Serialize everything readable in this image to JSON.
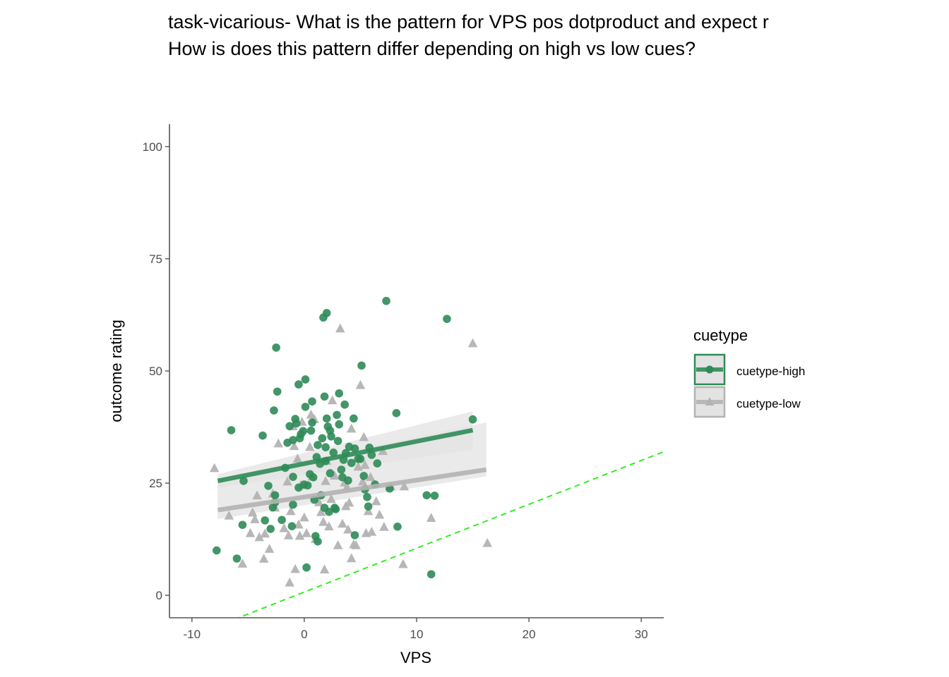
{
  "title_lines": [
    "task-vicarious- What is the pattern for VPS pos dotproduct and expect r",
    "How is does this pattern differ depending on high vs low cues?"
  ],
  "colors": {
    "high": "#2e8b57",
    "low": "#b3b3b3",
    "band": "#e3e3e3",
    "reference": "#33ee22",
    "axis": "#555555"
  },
  "chart_data": {
    "type": "scatter",
    "title": "task-vicarious- What is the pattern for VPS pos dotproduct and expect r\nHow is does this pattern differ depending on high vs low cues?",
    "xlabel": "VPS",
    "ylabel": "outcome rating",
    "xlim": [
      -12,
      32
    ],
    "ylim": [
      -5,
      105
    ],
    "xticks": [
      -10,
      0,
      10,
      20,
      30
    ],
    "yticks": [
      0,
      25,
      50,
      75,
      100
    ],
    "grid": false,
    "legend": {
      "title": "cuetype",
      "placement": "right"
    },
    "reference_line": {
      "style": "dashed",
      "color": "#33ee22",
      "x": [
        -12,
        32
      ],
      "y": [
        -11,
        32
      ]
    },
    "series": [
      {
        "name": "cuetype-high",
        "marker": "circle",
        "color": "#2e8b57",
        "fit": {
          "x": [
            -7.7,
            15.0
          ],
          "y": [
            25.5,
            36.8
          ]
        },
        "band": {
          "x": [
            -7.7,
            15.0
          ],
          "lower": [
            24.0,
            32.5
          ],
          "upper": [
            27.0,
            41.0
          ]
        },
        "points": [
          [
            -7.8,
            10
          ],
          [
            -6.5,
            36.8
          ],
          [
            -6,
            8.2
          ],
          [
            -5.5,
            15.7
          ],
          [
            -5.4,
            25.5
          ],
          [
            -3.7,
            35.6
          ],
          [
            -3.5,
            16.7
          ],
          [
            -3.2,
            24.4
          ],
          [
            -3,
            14.8
          ],
          [
            -2.8,
            19.6
          ],
          [
            -2.6,
            20.7
          ],
          [
            -2.7,
            41.2
          ],
          [
            -2.6,
            22.3
          ],
          [
            -2.5,
            55.2
          ],
          [
            -2.4,
            45.4
          ],
          [
            -2,
            16.8
          ],
          [
            -1.7,
            28.4
          ],
          [
            -1.5,
            34
          ],
          [
            -1.3,
            37.7
          ],
          [
            -1.1,
            15.4
          ],
          [
            -1,
            20.2
          ],
          [
            -1,
            26.4
          ],
          [
            -1,
            34.6
          ],
          [
            -0.8,
            39.3
          ],
          [
            -0.7,
            38.3
          ],
          [
            -0.5,
            24
          ],
          [
            -0.5,
            47
          ],
          [
            -0.4,
            35
          ],
          [
            -0.3,
            35.9
          ],
          [
            -0.1,
            36.6
          ],
          [
            0,
            24.7
          ],
          [
            0.1,
            42
          ],
          [
            0.1,
            48.1
          ],
          [
            0.2,
            6.2
          ],
          [
            0.3,
            24.5
          ],
          [
            0.5,
            27
          ],
          [
            0.6,
            36.7
          ],
          [
            0.7,
            38.5
          ],
          [
            0.7,
            43.2
          ],
          [
            0.8,
            26.3
          ],
          [
            0.9,
            21.3
          ],
          [
            1,
            13.2
          ],
          [
            1.2,
            12
          ],
          [
            1.1,
            30.8
          ],
          [
            1.2,
            33.5
          ],
          [
            1.4,
            29.3
          ],
          [
            1.5,
            22.3
          ],
          [
            1.6,
            35
          ],
          [
            1.7,
            61.9
          ],
          [
            1.8,
            44.3
          ],
          [
            1.8,
            19.5
          ],
          [
            1.9,
            29.9
          ],
          [
            1.9,
            33
          ],
          [
            2,
            39.4
          ],
          [
            2,
            62.9
          ],
          [
            2.1,
            37.6
          ],
          [
            2.2,
            18.6
          ],
          [
            2.3,
            36.7
          ],
          [
            2.3,
            27.2
          ],
          [
            2.4,
            35.4
          ],
          [
            2.6,
            31.8
          ],
          [
            2.7,
            19.5
          ],
          [
            2.8,
            19.2
          ],
          [
            2.9,
            40.2
          ],
          [
            3,
            34.4
          ],
          [
            3.1,
            38.1
          ],
          [
            3.1,
            45
          ],
          [
            3.3,
            28
          ],
          [
            3.4,
            26.3
          ],
          [
            3.5,
            30.2
          ],
          [
            3.6,
            42.5
          ],
          [
            3.7,
            31.7
          ],
          [
            3.9,
            25.6
          ],
          [
            4,
            33.1
          ],
          [
            4.2,
            29.5
          ],
          [
            4.4,
            39.4
          ],
          [
            4.5,
            32.7
          ],
          [
            4.5,
            13.4
          ],
          [
            4.8,
            30.4
          ],
          [
            5,
            30.4
          ],
          [
            5.1,
            51.2
          ],
          [
            5.3,
            26.6
          ],
          [
            5.4,
            23.6
          ],
          [
            5.6,
            21.9
          ],
          [
            5.7,
            19.8
          ],
          [
            5.8,
            32.9
          ],
          [
            6,
            31.3
          ],
          [
            6.3,
            24.7
          ],
          [
            6.5,
            29.4
          ],
          [
            7.3,
            65.6
          ],
          [
            7.6,
            23.8
          ],
          [
            8.2,
            40.6
          ],
          [
            8.3,
            15.3
          ],
          [
            10.9,
            22.3
          ],
          [
            11.3,
            4.7
          ],
          [
            11.6,
            22.2
          ],
          [
            12.7,
            61.6
          ],
          [
            15,
            39.2
          ]
        ]
      },
      {
        "name": "cuetype-low",
        "marker": "triangle",
        "color": "#b3b3b3",
        "fit": {
          "x": [
            -7.7,
            16.2
          ],
          "y": [
            19.0,
            28.0
          ]
        },
        "band": {
          "x": [
            -7.7,
            16.2
          ],
          "lower": [
            17.0,
            26.5
          ],
          "upper": [
            26.0,
            38.5
          ]
        },
        "points": [
          [
            -8,
            28.3
          ],
          [
            -6.7,
            17.7
          ],
          [
            -5.5,
            7
          ],
          [
            -4.8,
            13.8
          ],
          [
            -4.6,
            18.4
          ],
          [
            -4.4,
            16.9
          ],
          [
            -4.2,
            22.2
          ],
          [
            -4,
            12.9
          ],
          [
            -3.6,
            8.1
          ],
          [
            -3.5,
            13.7
          ],
          [
            -3.1,
            10.3
          ],
          [
            -2.8,
            22.6
          ],
          [
            -2.6,
            19.5
          ],
          [
            -2.3,
            33.8
          ],
          [
            -1.8,
            14.9
          ],
          [
            -1.5,
            25.3
          ],
          [
            -1.4,
            13.3
          ],
          [
            -1.3,
            2.8
          ],
          [
            -1.2,
            18.7
          ],
          [
            -1,
            37.6
          ],
          [
            -0.9,
            33.2
          ],
          [
            -0.8,
            5.8
          ],
          [
            -0.6,
            30.4
          ],
          [
            -0.5,
            15.7
          ],
          [
            -0.4,
            13.2
          ],
          [
            -0.3,
            24.5
          ],
          [
            -0.2,
            38.6
          ],
          [
            0,
            17.3
          ],
          [
            0.2,
            13.8
          ],
          [
            0.5,
            33
          ],
          [
            0.6,
            40.2
          ],
          [
            0.7,
            26.4
          ],
          [
            0.9,
            39.2
          ],
          [
            1,
            12.5
          ],
          [
            1.3,
            20.7
          ],
          [
            1.5,
            18.5
          ],
          [
            1.7,
            16.3
          ],
          [
            1.8,
            5.7
          ],
          [
            1.9,
            25.4
          ],
          [
            2,
            29.9
          ],
          [
            2.2,
            15.3
          ],
          [
            2.4,
            21.4
          ],
          [
            2.5,
            43.4
          ],
          [
            2.7,
            26.6
          ],
          [
            3,
            11.1
          ],
          [
            3.2,
            59.4
          ],
          [
            3.4,
            15.9
          ],
          [
            3.6,
            25.1
          ],
          [
            3.7,
            19.8
          ],
          [
            3.8,
            24.1
          ],
          [
            3.9,
            14.6
          ],
          [
            4,
            20.6
          ],
          [
            4.2,
            37.1
          ],
          [
            4.2,
            8.2
          ],
          [
            4.4,
            11.3
          ],
          [
            4.6,
            11.1
          ],
          [
            4.8,
            28.6
          ],
          [
            5,
            46.8
          ],
          [
            5.2,
            25.3
          ],
          [
            5.3,
            35.2
          ],
          [
            5.4,
            29
          ],
          [
            5.5,
            13.8
          ],
          [
            5.7,
            18.7
          ],
          [
            5.9,
            26.3
          ],
          [
            6,
            14.1
          ],
          [
            6.4,
            20.9
          ],
          [
            6.7,
            17.9
          ],
          [
            7,
            32.1
          ],
          [
            7.1,
            15.2
          ],
          [
            7.7,
            24.2
          ],
          [
            8.8,
            6.9
          ],
          [
            8.9,
            24.2
          ],
          [
            11.3,
            17.2
          ],
          [
            15,
            56.1
          ],
          [
            16.3,
            11.6
          ]
        ]
      }
    ]
  }
}
